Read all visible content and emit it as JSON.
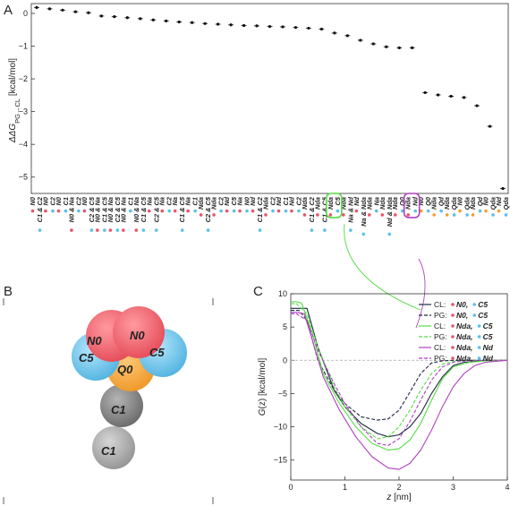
{
  "panels": {
    "A": "A",
    "B": "B",
    "C": "C"
  },
  "colors": {
    "red_dot": "#e8556a",
    "blue_dot": "#5bc0e8",
    "orange_dot": "#f0a030",
    "green": "#55dd44",
    "purple": "#b040c0",
    "navy": "#1e2840"
  },
  "chart_data": [
    {
      "type": "scatter",
      "panel": "A",
      "ylabel": "ΔΔG PG→CL [kcal/mol]",
      "ylabel_parts": {
        "main": "ΔΔG",
        "sub": "PG→CL",
        "unit": " [kcal/mol]"
      },
      "ylim": [
        -5.5,
        0.3
      ],
      "yticks": [
        0,
        -1,
        -2,
        -3,
        -4,
        -5
      ],
      "yticklabels": [
        "0",
        "−1",
        "−2",
        "−3",
        "−4",
        "−5"
      ],
      "error_bars": true,
      "grid": false,
      "categories": [
        {
          "a": "N0",
          "b": "C1 & C2",
          "values_a": [],
          "values_b": [],
          "dot_a": "red",
          "dot_b": "blue"
        },
        {
          "a": "N0",
          "b": "C2",
          "dot_a": "red",
          "dot_b": "blue"
        },
        {
          "a": "N0",
          "b": "C1",
          "dot_a": "red",
          "dot_b": "blue"
        },
        {
          "a": "N0 & Na",
          "b": "C2",
          "dot_a": "red",
          "dot_b": "blue"
        },
        {
          "a": "N0",
          "b": "C2 & C5",
          "dot_a": "red",
          "dot_b": "blue"
        },
        {
          "a": "N0 & Na",
          "b": "C1 & C5",
          "dot_a": "red",
          "dot_b": "blue"
        },
        {
          "a": "N0 & Na",
          "b": "C2 & C5",
          "dot_a": "red",
          "dot_b": "blue"
        },
        {
          "a": "N0 & Na",
          "b": "C1",
          "dot_a": "red",
          "dot_b": "blue"
        },
        {
          "a": "N0 & Na",
          "b": "C1 & C5",
          "dot_a": "red",
          "dot_b": "blue"
        },
        {
          "a": "Na",
          "b": "C2 & C5",
          "dot_a": "red",
          "dot_b": "blue"
        },
        {
          "a": "Na",
          "b": "C2",
          "dot_a": "red",
          "dot_b": "blue"
        },
        {
          "a": "Na",
          "b": "C1 & C5",
          "dot_a": "red",
          "dot_b": "blue"
        },
        {
          "a": "Na",
          "b": "C1",
          "dot_a": "red",
          "dot_b": "blue"
        },
        {
          "a": "Nda",
          "b": "C2 & C5",
          "dot_a": "red",
          "dot_b": "blue"
        },
        {
          "a": "Nda",
          "b": "C2",
          "dot_a": "red",
          "dot_b": "blue"
        },
        {
          "a": "Nd",
          "b": "C5",
          "dot_a": "red",
          "dot_b": "blue"
        },
        {
          "a": "Na",
          "b": "N0",
          "dot_a": "red",
          "dot_b": "blue"
        },
        {
          "a": "Nd",
          "b": "C1 & C2",
          "dot_a": "red",
          "dot_b": "blue"
        },
        {
          "a": "Nda",
          "b": "C2",
          "dot_a": "red",
          "dot_b": "blue"
        },
        {
          "a": "Nd",
          "b": "C1",
          "dot_a": "red",
          "dot_b": "blue"
        },
        {
          "a": "Nd",
          "b": "C2",
          "dot_a": "red",
          "dot_b": "blue"
        },
        {
          "a": "Nda",
          "b": "C1 & C2",
          "dot_a": "red",
          "dot_b": "blue"
        },
        {
          "a": "Nda",
          "b": "C1 & C5",
          "dot_a": "red",
          "dot_b": "blue"
        },
        {
          "a": "Nda",
          "b": "C5",
          "dot_a": "red",
          "dot_b": "blue",
          "highlight": "green"
        },
        {
          "a": "Nda",
          "b": "Na & Nd",
          "dot_a": "red",
          "dot_b": "blue"
        },
        {
          "a": "Nd",
          "b": "Na & Nda",
          "dot_a": "red",
          "dot_b": "blue"
        },
        {
          "a": "Nda",
          "b": "Na",
          "dot_a": "red",
          "dot_b": "blue"
        },
        {
          "a": "Nda",
          "b": "Nd & Nda",
          "dot_a": "red",
          "dot_b": "blue"
        },
        {
          "a": "Nda",
          "b": "Q0",
          "dot_a": "red",
          "dot_b": "blue"
        },
        {
          "a": "Nda",
          "b": "Nd",
          "dot_a": "red",
          "dot_b": "blue",
          "highlight": "purple"
        },
        {
          "a": "N0",
          "b": "Q0",
          "dot_a": "orange",
          "dot_b": "blue"
        },
        {
          "a": "Nda",
          "b": "Qd",
          "dot_a": "orange",
          "dot_b": "blue"
        },
        {
          "a": "Nda",
          "b": "Qda",
          "dot_a": "orange",
          "dot_b": "blue"
        },
        {
          "a": "N0",
          "b": "Qda",
          "dot_a": "orange",
          "dot_b": "blue"
        },
        {
          "a": "Nda",
          "b": "Qd",
          "dot_a": "orange",
          "dot_b": "blue"
        },
        {
          "a": "N0",
          "b": "Qda",
          "dot_a": "orange",
          "dot_b": "blue"
        },
        {
          "a": "Nd",
          "b": "Qda",
          "dot_a": "orange",
          "dot_b": "blue"
        }
      ],
      "values": [
        0.18,
        0.14,
        0.1,
        0.05,
        0.02,
        -0.08,
        -0.1,
        -0.13,
        -0.16,
        -0.2,
        -0.23,
        -0.26,
        -0.28,
        -0.31,
        -0.33,
        -0.35,
        -0.37,
        -0.38,
        -0.4,
        -0.41,
        -0.43,
        -0.45,
        -0.48,
        -0.6,
        -0.68,
        -0.82,
        -0.93,
        -1.02,
        -1.05,
        -1.05,
        -2.42,
        -2.49,
        -2.53,
        -2.57,
        -2.82,
        -3.45,
        -5.35
      ]
    },
    {
      "type": "line",
      "panel": "C",
      "xlabel": "z [nm]",
      "xlabel_parts": {
        "main": "z",
        "unit": " [nm]"
      },
      "ylabel": "G(z) [kcal/mol]",
      "ylabel_parts": {
        "main": "G",
        "rest": "(z) [kcal/mol]"
      },
      "xlim": [
        0,
        4
      ],
      "ylim": [
        -18,
        10
      ],
      "xticks": [
        0,
        1,
        2,
        3,
        4
      ],
      "yticks": [
        10,
        5,
        0,
        -5,
        -10,
        -15
      ],
      "yticklabels": [
        "10",
        "5",
        "0",
        "−5",
        "−10",
        "−15"
      ],
      "zero_line": "dashed",
      "legend": "top-right",
      "series": [
        {
          "name": "CL: N0, C5",
          "prefix": "CL:",
          "a": "N0",
          "b": "C5",
          "color": "#1e2840",
          "dash": false,
          "x": [
            0,
            0.1,
            0.3,
            0.5,
            0.8,
            1.0,
            1.3,
            1.6,
            1.8,
            2.0,
            2.2,
            2.4,
            2.6,
            2.8,
            3.0,
            3.2,
            3.5,
            4.0
          ],
          "y": [
            7.8,
            7.8,
            7.8,
            2,
            -4.5,
            -7,
            -9.5,
            -11,
            -11.5,
            -11.2,
            -10,
            -8,
            -5,
            -2.5,
            -0.8,
            -0.3,
            -0.1,
            0
          ]
        },
        {
          "name": "PG: N0, C5",
          "prefix": "PG:",
          "a": "N0",
          "b": "C5",
          "color": "#1e2840",
          "dash": true,
          "x": [
            0,
            0.15,
            0.3,
            0.5,
            0.8,
            1.0,
            1.3,
            1.6,
            1.8,
            2.0,
            2.2,
            2.4,
            2.6,
            2.8,
            3.0,
            3.5,
            4.0
          ],
          "y": [
            7.5,
            7.5,
            6,
            0,
            -4.5,
            -6.5,
            -8.5,
            -9,
            -8.8,
            -7.5,
            -4.8,
            -2,
            -0.4,
            -0.1,
            0,
            0,
            0
          ]
        },
        {
          "name": "CL: Nda, C5",
          "prefix": "CL:",
          "a": "Nda",
          "b": "C5",
          "color": "#55dd44",
          "dash": false,
          "x": [
            0,
            0.1,
            0.2,
            0.4,
            0.6,
            0.9,
            1.2,
            1.5,
            1.8,
            2.0,
            2.2,
            2.4,
            2.6,
            2.8,
            3.0,
            3.3,
            3.6,
            4.0
          ],
          "y": [
            8.8,
            8.8,
            8.6,
            4,
            -2,
            -6.5,
            -10,
            -12.5,
            -13.5,
            -13.3,
            -12,
            -9.5,
            -6,
            -2.8,
            -1,
            -0.3,
            -0.1,
            0
          ]
        },
        {
          "name": "PG: Nda, C5",
          "prefix": "PG:",
          "a": "Nda",
          "b": "C5",
          "color": "#55dd44",
          "dash": true,
          "x": [
            0,
            0.1,
            0.3,
            0.5,
            0.8,
            1.0,
            1.3,
            1.6,
            1.8,
            2.0,
            2.2,
            2.4,
            2.6,
            2.8,
            3.0,
            3.3,
            4.0
          ],
          "y": [
            8.5,
            8.5,
            7,
            2,
            -4,
            -7,
            -10,
            -11.8,
            -11.5,
            -10,
            -7.5,
            -4.5,
            -2,
            -0.6,
            -0.2,
            0,
            0
          ]
        },
        {
          "name": "CL: Nda, Nd",
          "prefix": "CL:",
          "a": "Nda",
          "b": "Nd",
          "color": "#b040c0",
          "dash": false,
          "x": [
            0,
            0.1,
            0.25,
            0.4,
            0.6,
            0.9,
            1.2,
            1.5,
            1.8,
            2.0,
            2.2,
            2.4,
            2.6,
            2.8,
            3.0,
            3.2,
            3.4,
            3.6,
            4.0
          ],
          "y": [
            7.2,
            7.2,
            7,
            3,
            -2.5,
            -7.5,
            -11.5,
            -14.5,
            -16.2,
            -16.4,
            -15.5,
            -13.5,
            -10.5,
            -7,
            -4,
            -2,
            -0.8,
            -0.3,
            0
          ]
        },
        {
          "name": "PG: Nda, Nd",
          "prefix": "PG:",
          "a": "Nda",
          "b": "Nd",
          "color": "#b040c0",
          "dash": true,
          "x": [
            0,
            0.1,
            0.3,
            0.5,
            0.8,
            1.0,
            1.3,
            1.6,
            1.8,
            2.0,
            2.2,
            2.4,
            2.6,
            2.8,
            3.0,
            3.3,
            4.0
          ],
          "y": [
            7,
            7,
            6,
            1.5,
            -3.5,
            -6.5,
            -10,
            -12.5,
            -12.8,
            -11.8,
            -9.2,
            -6,
            -3,
            -1,
            -0.3,
            0,
            0
          ]
        }
      ]
    }
  ],
  "molecule": {
    "beads": [
      {
        "label": "N0",
        "color": "#ee5d66"
      },
      {
        "label": "N0",
        "color": "#ee5d66"
      },
      {
        "label": "C5",
        "color": "#6cc4ea"
      },
      {
        "label": "C5",
        "color": "#6cc4ea"
      },
      {
        "label": "Q0",
        "color": "#f3a43a"
      },
      {
        "label": "C1",
        "color": "#7d7d7d"
      },
      {
        "label": "C1",
        "color": "#a3a3a3"
      }
    ]
  }
}
